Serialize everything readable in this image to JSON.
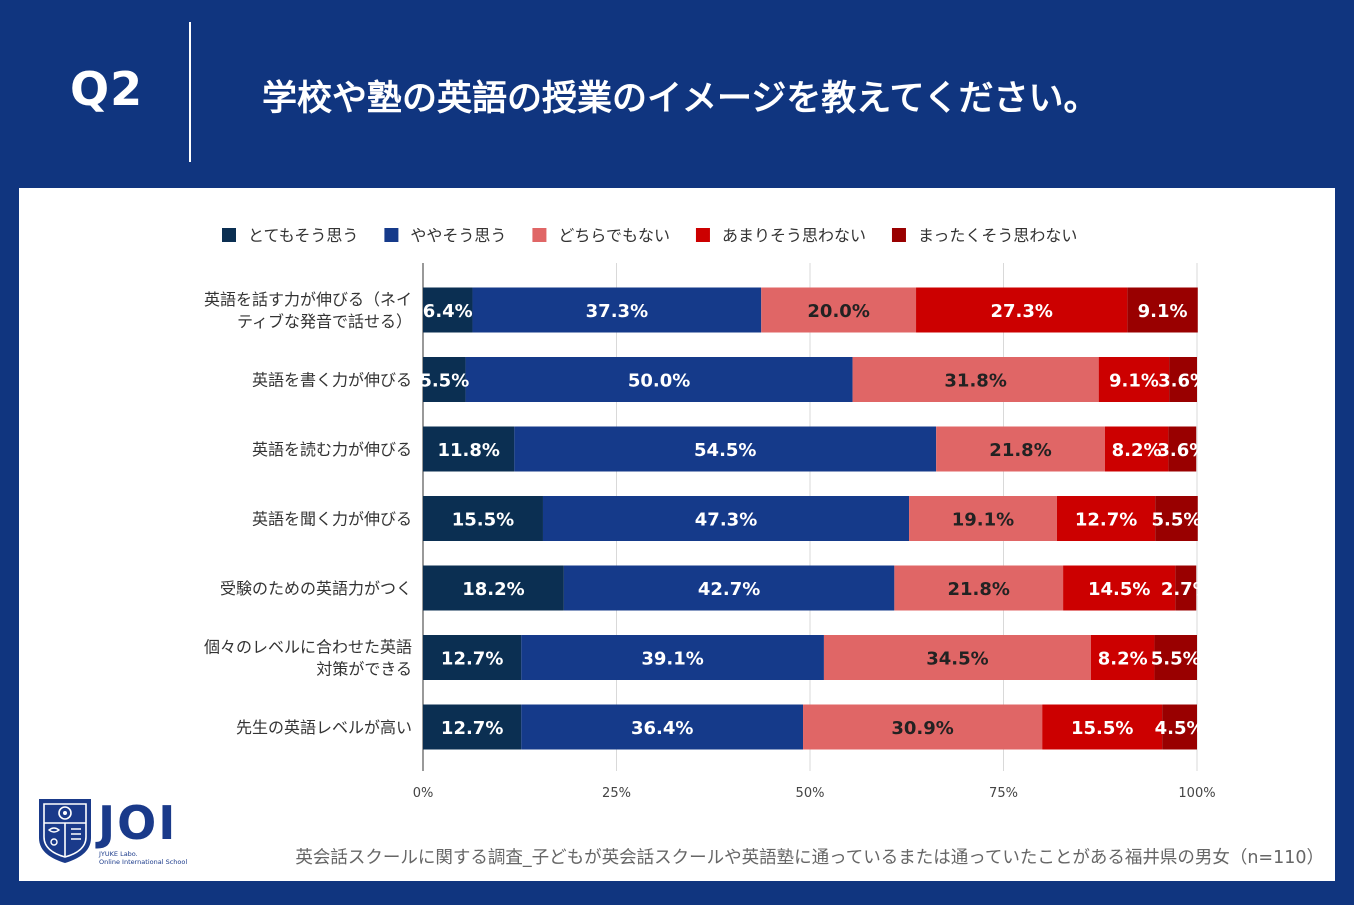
{
  "header": {
    "q_label": "Q2",
    "question": "学校や塾の英語の授業のイメージを教えてください。"
  },
  "chart_data": {
    "type": "bar",
    "orientation": "horizontal-stacked-100",
    "legend_position": "top",
    "legend": [
      {
        "name": "とてもそう思う",
        "color": "#0b2f52"
      },
      {
        "name": "ややそう思う",
        "color": "#153a8a"
      },
      {
        "name": "どちらでもない",
        "color": "#e06666"
      },
      {
        "name": "あまりそう思わない",
        "color": "#cc0000"
      },
      {
        "name": "まったくそう思わない",
        "color": "#990000"
      }
    ],
    "categories": [
      [
        "英語を話す力が伸びる（ネイ",
        "ティブな発音で話せる）"
      ],
      [
        "英語を書く力が伸びる"
      ],
      [
        "英語を読む力が伸びる"
      ],
      [
        "英語を聞く力が伸びる"
      ],
      [
        "受験のための英語力がつく"
      ],
      [
        "個々のレベルに合わせた英語",
        "対策ができる"
      ],
      [
        "先生の英語レベルが高い"
      ]
    ],
    "series": [
      {
        "name": "とてもそう思う",
        "values": [
          6.4,
          5.5,
          11.8,
          15.5,
          18.2,
          12.7,
          12.7
        ]
      },
      {
        "name": "ややそう思う",
        "values": [
          37.3,
          50.0,
          54.5,
          47.3,
          42.7,
          39.1,
          36.4
        ]
      },
      {
        "name": "どちらでもない",
        "values": [
          20.0,
          31.8,
          21.8,
          19.1,
          21.8,
          34.5,
          30.9
        ]
      },
      {
        "name": "あまりそう思わない",
        "values": [
          27.3,
          9.1,
          8.2,
          12.7,
          14.5,
          8.2,
          15.5
        ]
      },
      {
        "name": "まったくそう思わない",
        "values": [
          9.1,
          3.6,
          3.6,
          5.5,
          2.7,
          5.5,
          4.5
        ]
      }
    ],
    "x_ticks": [
      "0%",
      "25%",
      "50%",
      "75%",
      "100%"
    ],
    "xlim": [
      0,
      100
    ],
    "grid": true
  },
  "logo": {
    "text": "JOI",
    "sub1": "JYUKE Labo.",
    "sub2": "Online International School"
  },
  "footnote": "英会話スクールに関する調査_子どもが英会話スクールや英語塾に通っているまたは通っていたことがある福井県の男女（n=110）"
}
